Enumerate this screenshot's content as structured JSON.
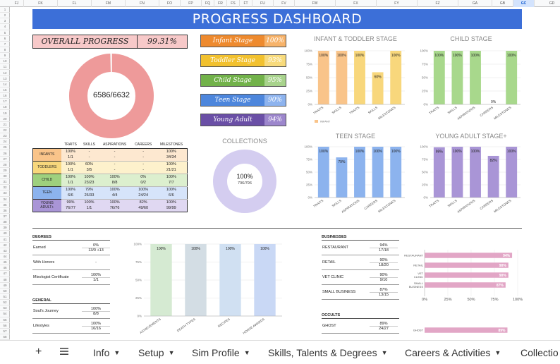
{
  "sheet": {
    "columns": [
      "FJ",
      "FK",
      "FL",
      "FM",
      "FN",
      "FO",
      "FP",
      "FQ",
      "FR",
      "FS",
      "FT",
      "FU",
      "FV",
      "FW",
      "FX",
      "FY",
      "FZ",
      "GA",
      "GB",
      "GC",
      "GD"
    ],
    "rows": [
      "1",
      "2",
      "3",
      "4",
      "5",
      "6",
      "7",
      "8",
      "9",
      "10",
      "11",
      "12",
      "13",
      "14",
      "15",
      "16",
      "17",
      "18",
      "19",
      "20",
      "21",
      "22",
      "23",
      "24",
      "25",
      "26",
      "27",
      "28",
      "29",
      "30",
      "31",
      "32",
      "33",
      "34",
      "35",
      "36",
      "37",
      "38",
      "39",
      "40",
      "41",
      "42",
      "43",
      "44",
      "45",
      "46",
      "47",
      "48",
      "49",
      "50",
      "51",
      "52",
      "53",
      "54",
      "55",
      "56",
      "57",
      "58"
    ]
  },
  "banner": {
    "title": "PROGRESS DASHBOARD"
  },
  "overall": {
    "label": "OVERALL PROGRESS",
    "percent": "99.31%",
    "center": "6586/6632",
    "fraction": 0.9931,
    "color": "#ee9a9a"
  },
  "stages": [
    {
      "name": "Infant Stage",
      "pct": "100%",
      "color": "#ee8a2e",
      "light": "#f7b36a"
    },
    {
      "name": "Toddler Stage",
      "pct": "93%",
      "color": "#f2c12e",
      "light": "#f8db7c"
    },
    {
      "name": "Child Stage",
      "pct": "95%",
      "color": "#72b24a",
      "light": "#a8d38c"
    },
    {
      "name": "Teen Stage",
      "pct": "90%",
      "color": "#4d86dc",
      "light": "#8db3ee"
    },
    {
      "name": "Young Adult Stage+",
      "pct": "94%",
      "color": "#6a4fa6",
      "light": "#9c86cc"
    }
  ],
  "collections": {
    "title": "COLLECTIONS",
    "pct": "100%",
    "sub": "796/796",
    "fraction": 1,
    "color": "#d4cdf0"
  },
  "stage_table": {
    "headers": [
      "TRAITS",
      "SKILLS",
      "ASPIRATIONS",
      "CAREERS",
      "MILESTONES"
    ],
    "rows": [
      {
        "label": "INFANTS",
        "color": "#f9c48a",
        "light": "#fde8d0",
        "pct": [
          "100%",
          "-",
          "-",
          "-",
          "100%"
        ],
        "count": [
          "1/1",
          "-",
          "-",
          "-",
          "34/34"
        ]
      },
      {
        "label": "TODDLERS",
        "color": "#f8d77c",
        "light": "#fdf1cc",
        "pct": [
          "100%",
          "60%",
          "-",
          "-",
          "100%"
        ],
        "count": [
          "1/1",
          "3/5",
          "-",
          "-",
          "21/21"
        ]
      },
      {
        "label": "CHILD",
        "color": "#9ed07e",
        "light": "#dcefce",
        "pct": [
          "100%",
          "100%",
          "100%",
          "0%",
          "100%"
        ],
        "count": [
          "1/1",
          "23/23",
          "8/8",
          "0/2",
          "7/7"
        ]
      },
      {
        "label": "TEEN",
        "color": "#8cb3ee",
        "light": "#d6e4fa",
        "pct": [
          "100%",
          "79%",
          "100%",
          "100%",
          "100%"
        ],
        "count": [
          "6/6",
          "26/33",
          "4/4",
          "24/24",
          "6/6"
        ]
      },
      {
        "label": "YOUNG ADULT+",
        "color": "#a995d6",
        "light": "#e0d8f2",
        "pct": [
          "99%",
          "100%",
          "100%",
          "82%",
          "100%"
        ],
        "count": [
          "76/77",
          "1/1",
          "76/76",
          "49/60",
          "99/99"
        ]
      }
    ]
  },
  "chart_data": [
    {
      "type": "bar",
      "title": "INFANT & TODDLER STAGE",
      "categories": [
        "TRAITS",
        "SKILLS",
        "TRAITS",
        "SKILLS",
        "MILESTONES"
      ],
      "values": [
        100,
        100,
        100,
        60,
        100
      ],
      "labels": [
        "100%",
        "100%",
        "100%",
        "60%",
        "100%"
      ],
      "colors": [
        "#f9c48a",
        "#f9c48a",
        "#f8d77c",
        "#f8d77c",
        "#f8d77c"
      ],
      "yticks": [
        "100%",
        "75%",
        "50%",
        "25%",
        "0%"
      ],
      "legend": [
        "INFANT"
      ],
      "ylim": [
        0,
        100
      ]
    },
    {
      "type": "bar",
      "title": "CHILD STAGE",
      "categories": [
        "TRAITS",
        "SKILLS",
        "ASPIRATIONS",
        "CAREERS",
        "MILESTONES"
      ],
      "values": [
        100,
        100,
        100,
        0,
        100
      ],
      "labels": [
        "100%",
        "100%",
        "100%",
        "0%",
        "100%"
      ],
      "colors": [
        "#a8d88c",
        "#a8d88c",
        "#a8d88c",
        "#a8d88c",
        "#a8d88c"
      ],
      "yticks": [
        "100%",
        "75%",
        "50%",
        "25%",
        "0%"
      ],
      "ylim": [
        0,
        100
      ]
    },
    {
      "type": "bar",
      "title": "TEEN STAGE",
      "categories": [
        "TRAITS",
        "SKILLS",
        "ASPIRATIONS",
        "CAREERS",
        "MILESTONES"
      ],
      "values": [
        100,
        79,
        100,
        100,
        100
      ],
      "labels": [
        "100%",
        "79%",
        "100%",
        "100%",
        "100%"
      ],
      "colors": [
        "#8cb3ee",
        "#8cb3ee",
        "#8cb3ee",
        "#8cb3ee",
        "#8cb3ee"
      ],
      "yticks": [
        "100%",
        "75%",
        "50%",
        "25%",
        "0%"
      ],
      "ylim": [
        0,
        100
      ]
    },
    {
      "type": "bar",
      "title": "YOUNG ADULT STAGE+",
      "categories": [
        "TRAITS",
        "SKILLS",
        "ASPIRATIONS",
        "CAREERS",
        "MILESTONES"
      ],
      "values": [
        99,
        100,
        100,
        82,
        100
      ],
      "labels": [
        "99%",
        "100%",
        "100%",
        "82%",
        "100%"
      ],
      "colors": [
        "#a995d6",
        "#a995d6",
        "#a995d6",
        "#a995d6",
        "#a995d6"
      ],
      "yticks": [
        "100%",
        "75%",
        "50%",
        "25%",
        "0%"
      ],
      "ylim": [
        0,
        100
      ]
    },
    {
      "type": "bar",
      "title": "",
      "categories": [
        "ACHIEVEMENTS",
        "DEATH TYPES",
        "RECIPES",
        "HORSE AWARDS"
      ],
      "values": [
        100,
        100,
        100,
        100
      ],
      "labels": [
        "100%",
        "100%",
        "100%",
        "100%"
      ],
      "colors": [
        "#d5ead2",
        "#d3dde4",
        "#d0e0f2",
        "#c9d8f5"
      ],
      "yticks": [
        "100%",
        "75%",
        "50%",
        "25%",
        "0%"
      ],
      "ylim": [
        0,
        100
      ]
    },
    {
      "type": "bar",
      "orientation": "horizontal",
      "title": "",
      "categories": [
        "RESTAURANT",
        "RETAIL",
        "VET CLINIC",
        "SMALL BUSINESS",
        "GHOST"
      ],
      "values": [
        94,
        90,
        90,
        87,
        89
      ],
      "labels": [
        "94%",
        "90%",
        "90%",
        "87%",
        "89%"
      ],
      "colors": [
        "#e2a6c6",
        "#e2a6c6",
        "#e2a6c6",
        "#e2a6c6",
        "#e2a6c6"
      ],
      "xticks": [
        "0%",
        "25%",
        "50%",
        "75%",
        "100%"
      ],
      "xlim": [
        0,
        100
      ]
    }
  ],
  "degrees": {
    "title": "DEGREES",
    "rows": [
      {
        "label": "Earned",
        "pct": "0%",
        "count": "13/0 +13"
      },
      {
        "label": "With Honors",
        "pct": "-",
        "count": ""
      },
      {
        "label": "Mixologist Certificate",
        "pct": "100%",
        "count": "1/1"
      }
    ]
  },
  "general": {
    "title": "GENERAL",
    "rows": [
      {
        "label": "Soul's Journey",
        "pct": "100%",
        "count": "8/8"
      },
      {
        "label": "Lifestyles",
        "pct": "100%",
        "count": "16/16"
      }
    ]
  },
  "businesses": {
    "title": "BUSINESSES",
    "rows": [
      {
        "label": "RESTAURANT",
        "pct": "94%",
        "count": "17/18"
      },
      {
        "label": "RETAIL",
        "pct": "90%",
        "count": "18/20"
      },
      {
        "label": "VET CLINIC",
        "pct": "90%",
        "count": "9/10"
      },
      {
        "label": "SMALL BUSINESS",
        "pct": "87%",
        "count": "13/15"
      }
    ]
  },
  "occults": {
    "title": "OCCULTS",
    "rows": [
      {
        "label": "GHOST",
        "pct": "89%",
        "count": "24/27"
      }
    ]
  },
  "tabs": {
    "add": "+",
    "items": [
      {
        "label": "Info"
      },
      {
        "label": "Setup"
      },
      {
        "label": "Sim Profile"
      },
      {
        "label": "Skills, Talents & Degrees"
      },
      {
        "label": "Careers & Activities"
      },
      {
        "label": "Collectio"
      }
    ]
  }
}
